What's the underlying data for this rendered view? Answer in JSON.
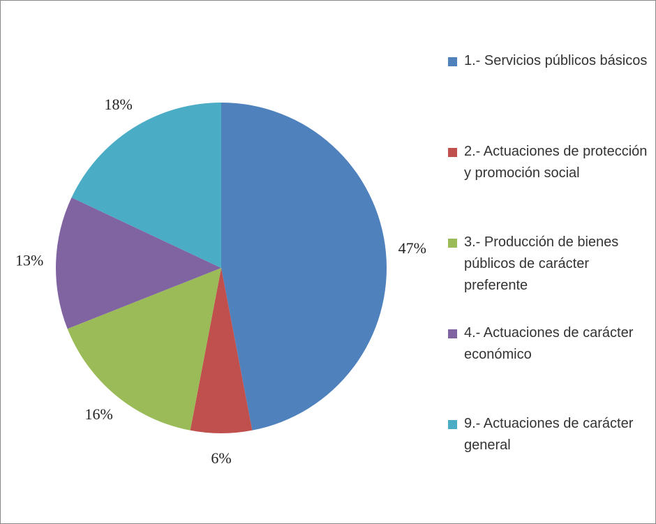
{
  "chart_data": {
    "type": "pie",
    "categories": [
      "1.- Servicios públicos básicos",
      "2.- Actuaciones de protección y promoción social",
      "3.- Producción de bienes públicos de carácter preferente",
      "4.- Actuaciones de carácter económico",
      "9.- Actuaciones de carácter general"
    ],
    "values": [
      47,
      6,
      16,
      13,
      18
    ],
    "value_labels": [
      "47%",
      "6%",
      "16%",
      "13%",
      "18%"
    ],
    "colors": [
      "#4f81bd",
      "#c0504d",
      "#9bbb59",
      "#8064a2",
      "#4bacc6"
    ],
    "legend": "right"
  }
}
